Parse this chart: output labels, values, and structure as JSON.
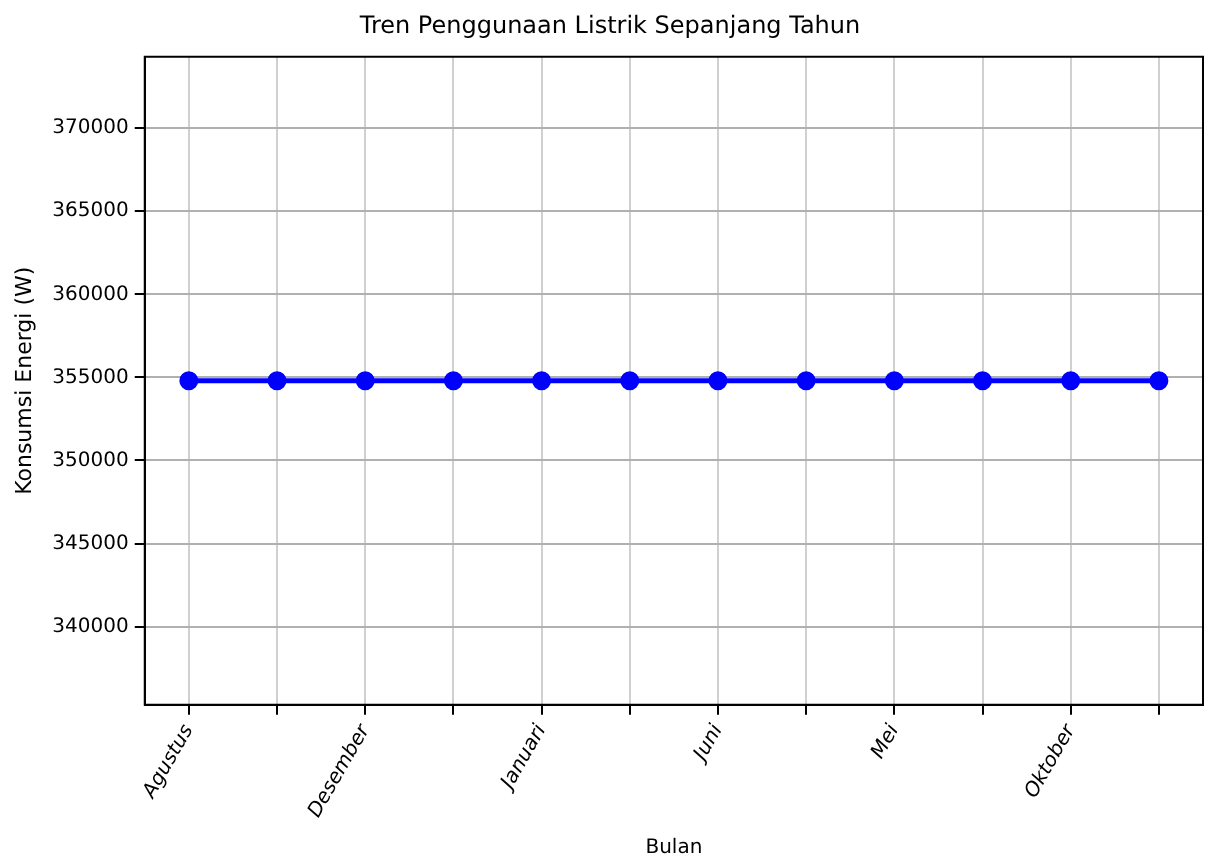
{
  "chart_data": {
    "type": "line",
    "title": "Tren Penggunaan Listrik Sepanjang Tahun",
    "xlabel": "Bulan",
    "ylabel": "Konsumsi Energi (W)",
    "categories": [
      "Agustus",
      null,
      "Desember",
      null,
      "Januari",
      null,
      "Juni",
      null,
      "Mei",
      null,
      "Oktober",
      null
    ],
    "series": [
      {
        "color": "#0000ff",
        "values": [
          354800,
          354800,
          354800,
          354800,
          354800,
          354800,
          354800,
          354800,
          354800,
          354800,
          354800,
          354800
        ]
      }
    ],
    "ylim": [
      335300,
      374300
    ],
    "yticks": [
      340000,
      345000,
      350000,
      355000,
      360000,
      365000,
      370000
    ],
    "grid": true,
    "legend": false,
    "marker": "circle",
    "line_style": "solid"
  }
}
